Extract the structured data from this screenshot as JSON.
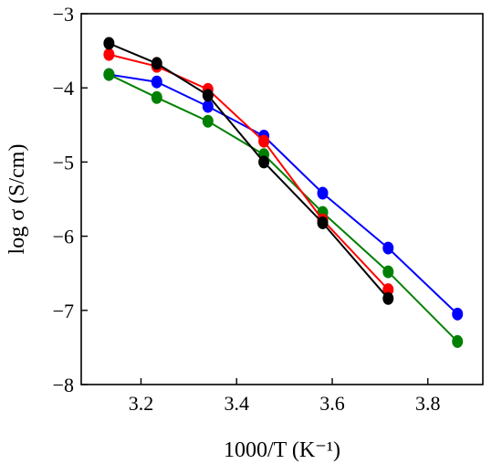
{
  "chart_data": {
    "type": "line",
    "title": "",
    "xlabel": "1000/T (K⁻¹)",
    "ylabel": "log σ (S/cm)",
    "xlim": [
      3.075,
      3.915
    ],
    "ylim": [
      -8,
      -3
    ],
    "xticks": [
      3.2,
      3.4,
      3.6,
      3.8
    ],
    "xtick_labels": [
      "3.2",
      "3.4",
      "3.6",
      "3.8"
    ],
    "yticks": [
      -8,
      -7,
      -6,
      -5,
      -4,
      -3
    ],
    "ytick_labels": [
      "−8",
      "−7",
      "−6",
      "−5",
      "−4",
      "−3"
    ],
    "grid": false,
    "legend": "none",
    "series": [
      {
        "color": "#0000ff",
        "x": [
          3.133,
          3.233,
          3.34,
          3.457,
          3.58,
          3.717,
          3.862
        ],
        "y": [
          -3.82,
          -3.92,
          -4.25,
          -4.65,
          -5.42,
          -6.16,
          -7.05
        ]
      },
      {
        "color": "#008000",
        "x": [
          3.133,
          3.233,
          3.34,
          3.457,
          3.58,
          3.717,
          3.862
        ],
        "y": [
          -3.82,
          -4.13,
          -4.45,
          -4.9,
          -5.68,
          -6.48,
          -7.42
        ]
      },
      {
        "color": "#ff0000",
        "x": [
          3.133,
          3.233,
          3.34,
          3.457,
          3.58,
          3.717
        ],
        "y": [
          -3.55,
          -3.71,
          -4.02,
          -4.72,
          -5.78,
          -6.72
        ]
      },
      {
        "color": "#000000",
        "x": [
          3.133,
          3.233,
          3.34,
          3.457,
          3.58,
          3.717
        ],
        "y": [
          -3.4,
          -3.67,
          -4.1,
          -5.0,
          -5.82,
          -6.84
        ]
      }
    ]
  }
}
